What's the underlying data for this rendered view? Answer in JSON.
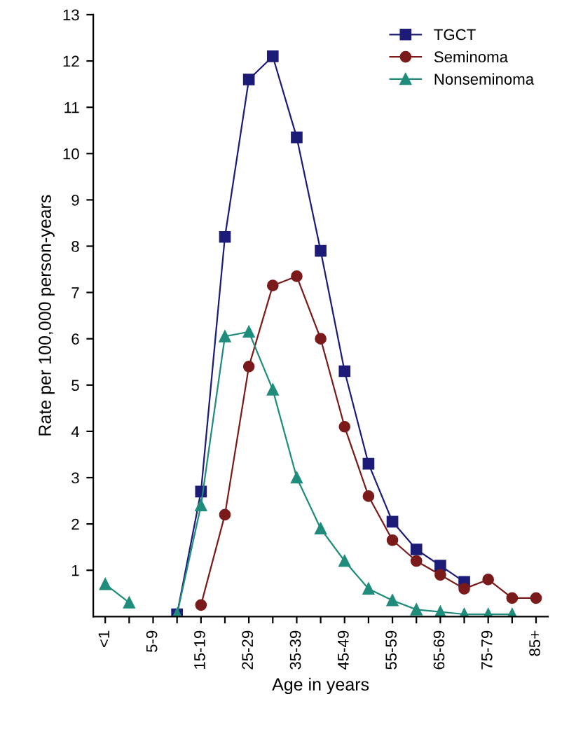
{
  "chart_data": {
    "type": "line",
    "xlabel": "Age in years",
    "ylabel": "Rate per 100,000 person-years",
    "categories": [
      "<1",
      null,
      "5-9",
      null,
      "15-19",
      null,
      "25-29",
      null,
      "35-39",
      null,
      "45-49",
      null,
      "55-59",
      null,
      "65-69",
      null,
      "75-79",
      null,
      "85+"
    ],
    "series": [
      {
        "name": "TGCT",
        "color": "#1c1c78",
        "marker": "square",
        "values": [
          null,
          null,
          null,
          0.05,
          2.7,
          8.2,
          11.6,
          12.1,
          10.35,
          7.9,
          5.3,
          3.3,
          2.05,
          1.45,
          1.1,
          0.75,
          null,
          null,
          null
        ]
      },
      {
        "name": "Seminoma",
        "color": "#7a1a1a",
        "marker": "circle",
        "values": [
          null,
          null,
          null,
          null,
          0.25,
          2.2,
          5.4,
          7.15,
          7.35,
          6.0,
          4.1,
          2.6,
          1.65,
          1.2,
          0.9,
          0.6,
          0.8,
          0.4,
          0.4
        ]
      },
      {
        "name": "Nonseminoma",
        "color": "#1f8c7c",
        "marker": "triangle",
        "values": [
          0.7,
          0.3,
          null,
          0.05,
          2.4,
          6.05,
          6.15,
          4.9,
          3.0,
          1.9,
          1.2,
          0.6,
          0.35,
          0.15,
          0.1,
          0.05,
          0.05,
          0.05,
          null
        ]
      }
    ],
    "ylim": [
      0,
      13
    ],
    "yticks": [
      1,
      2,
      3,
      4,
      5,
      6,
      7,
      8,
      9,
      10,
      11,
      12,
      13
    ],
    "grid": false,
    "legend": "top right",
    "line_style": "solid"
  }
}
